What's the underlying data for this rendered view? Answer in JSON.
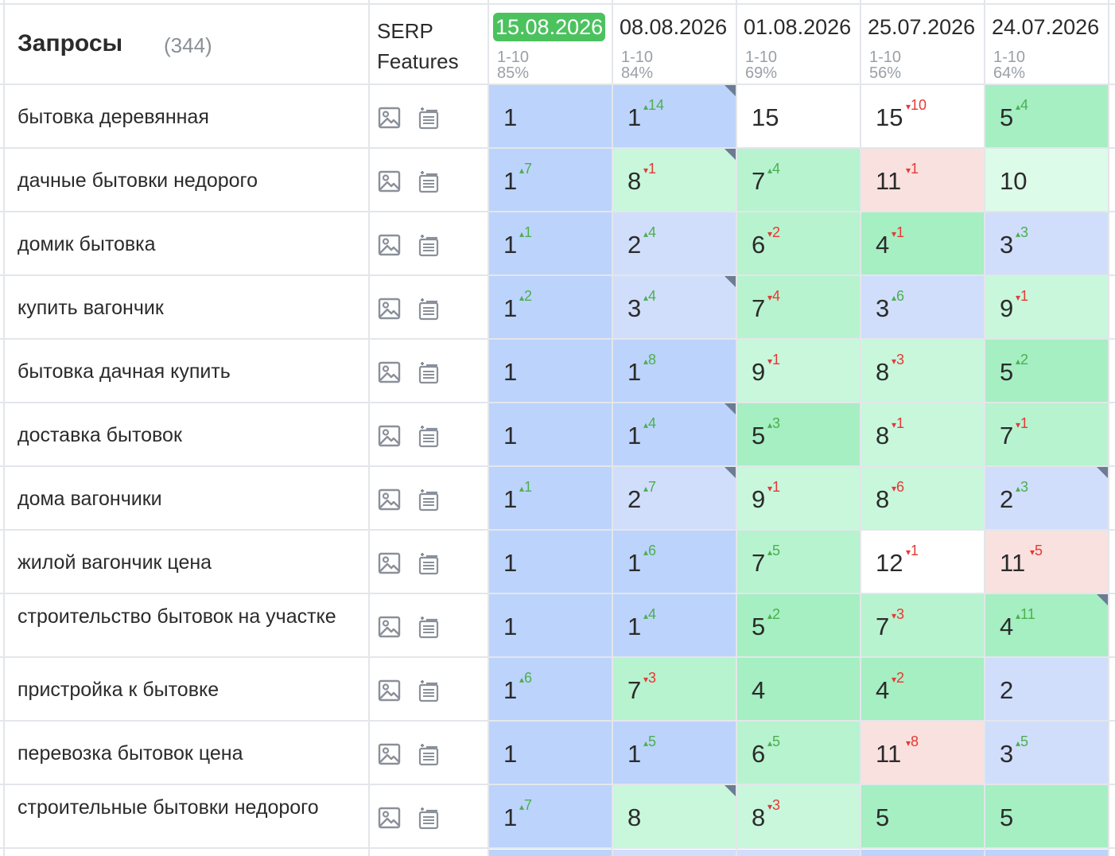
{
  "header": {
    "queries_title": "Запросы",
    "queries_count": "(344)",
    "serp_line1": "SERP",
    "serp_line2": "Features"
  },
  "dates": [
    {
      "label": "15.08.2026",
      "range": "1-10",
      "pct": "85%",
      "active": true
    },
    {
      "label": "08.08.2026",
      "range": "1-10",
      "pct": "84%",
      "active": false
    },
    {
      "label": "01.08.2026",
      "range": "1-10",
      "pct": "69%",
      "active": false
    },
    {
      "label": "25.07.2026",
      "range": "1-10",
      "pct": "56%",
      "active": false
    },
    {
      "label": "24.07.2026",
      "range": "1-10",
      "pct": "64%",
      "active": false
    }
  ],
  "icons": {
    "serp_image": "image-icon",
    "serp_list": "list-add-icon"
  },
  "colors": {
    "pos1": "#bcd3fb",
    "pos2_3": "#d0defb",
    "pos4_5": "#a5efc2",
    "pos6_7": "#b7f3cf",
    "pos8_9": "#c8f7dc",
    "pos10": "#dcfbe9",
    "pos11_plus": "#f9e1df",
    "pos15": "#ffffff",
    "active_date": "#4cc25f",
    "delta_up": "#4caf50",
    "delta_down": "#e53935"
  },
  "rows": [
    {
      "query": "бытовка деревянная",
      "cells": [
        {
          "pos": "1",
          "delta": "",
          "dir": "",
          "mark": false
        },
        {
          "pos": "1",
          "delta": "14",
          "dir": "up",
          "mark": true
        },
        {
          "pos": "15",
          "delta": "",
          "dir": "",
          "mark": false,
          "bg": "white"
        },
        {
          "pos": "15",
          "delta": "10",
          "dir": "down",
          "mark": false
        },
        {
          "pos": "5",
          "delta": "4",
          "dir": "up",
          "mark": false
        }
      ]
    },
    {
      "query": "дачные бытовки недорого",
      "cells": [
        {
          "pos": "1",
          "delta": "7",
          "dir": "up",
          "mark": false
        },
        {
          "pos": "8",
          "delta": "1",
          "dir": "down",
          "mark": true
        },
        {
          "pos": "7",
          "delta": "4",
          "dir": "up",
          "mark": false
        },
        {
          "pos": "11",
          "delta": "1",
          "dir": "down",
          "mark": false
        },
        {
          "pos": "10",
          "delta": "",
          "dir": "",
          "mark": false
        }
      ]
    },
    {
      "query": "домик бытовка",
      "cells": [
        {
          "pos": "1",
          "delta": "1",
          "dir": "up",
          "mark": false
        },
        {
          "pos": "2",
          "delta": "4",
          "dir": "up",
          "mark": false
        },
        {
          "pos": "6",
          "delta": "2",
          "dir": "down",
          "mark": false
        },
        {
          "pos": "4",
          "delta": "1",
          "dir": "down",
          "mark": false
        },
        {
          "pos": "3",
          "delta": "3",
          "dir": "up",
          "mark": false
        }
      ]
    },
    {
      "query": "купить вагончик",
      "cells": [
        {
          "pos": "1",
          "delta": "2",
          "dir": "up",
          "mark": false
        },
        {
          "pos": "3",
          "delta": "4",
          "dir": "up",
          "mark": true
        },
        {
          "pos": "7",
          "delta": "4",
          "dir": "down",
          "mark": false
        },
        {
          "pos": "3",
          "delta": "6",
          "dir": "up",
          "mark": false
        },
        {
          "pos": "9",
          "delta": "1",
          "dir": "down",
          "mark": false
        }
      ]
    },
    {
      "query": "бытовка дачная купить",
      "cells": [
        {
          "pos": "1",
          "delta": "",
          "dir": "",
          "mark": false
        },
        {
          "pos": "1",
          "delta": "8",
          "dir": "up",
          "mark": false
        },
        {
          "pos": "9",
          "delta": "1",
          "dir": "down",
          "mark": false
        },
        {
          "pos": "8",
          "delta": "3",
          "dir": "down",
          "mark": false
        },
        {
          "pos": "5",
          "delta": "2",
          "dir": "up",
          "mark": false
        }
      ]
    },
    {
      "query": "доставка бытовок",
      "cells": [
        {
          "pos": "1",
          "delta": "",
          "dir": "",
          "mark": false
        },
        {
          "pos": "1",
          "delta": "4",
          "dir": "up",
          "mark": true
        },
        {
          "pos": "5",
          "delta": "3",
          "dir": "up",
          "mark": false
        },
        {
          "pos": "8",
          "delta": "1",
          "dir": "down",
          "mark": false
        },
        {
          "pos": "7",
          "delta": "1",
          "dir": "down",
          "mark": false
        }
      ]
    },
    {
      "query": "дома вагончики",
      "cells": [
        {
          "pos": "1",
          "delta": "1",
          "dir": "up",
          "mark": false
        },
        {
          "pos": "2",
          "delta": "7",
          "dir": "up",
          "mark": true
        },
        {
          "pos": "9",
          "delta": "1",
          "dir": "down",
          "mark": false
        },
        {
          "pos": "8",
          "delta": "6",
          "dir": "down",
          "mark": false
        },
        {
          "pos": "2",
          "delta": "3",
          "dir": "up",
          "mark": true
        }
      ]
    },
    {
      "query": "жилой вагончик цена",
      "cells": [
        {
          "pos": "1",
          "delta": "",
          "dir": "",
          "mark": false
        },
        {
          "pos": "1",
          "delta": "6",
          "dir": "up",
          "mark": false
        },
        {
          "pos": "7",
          "delta": "5",
          "dir": "up",
          "mark": false
        },
        {
          "pos": "12",
          "delta": "1",
          "dir": "down",
          "mark": false,
          "bg": "white"
        },
        {
          "pos": "11",
          "delta": "5",
          "dir": "down",
          "mark": false
        }
      ]
    },
    {
      "query": "строительство бытовок на участке",
      "cells": [
        {
          "pos": "1",
          "delta": "",
          "dir": "",
          "mark": false
        },
        {
          "pos": "1",
          "delta": "4",
          "dir": "up",
          "mark": false
        },
        {
          "pos": "5",
          "delta": "2",
          "dir": "up",
          "mark": false
        },
        {
          "pos": "7",
          "delta": "3",
          "dir": "down",
          "mark": false
        },
        {
          "pos": "4",
          "delta": "11",
          "dir": "up",
          "mark": true
        }
      ]
    },
    {
      "query": "пристройка к бытовке",
      "cells": [
        {
          "pos": "1",
          "delta": "6",
          "dir": "up",
          "mark": false
        },
        {
          "pos": "7",
          "delta": "3",
          "dir": "down",
          "mark": false
        },
        {
          "pos": "4",
          "delta": "",
          "dir": "",
          "mark": false
        },
        {
          "pos": "4",
          "delta": "2",
          "dir": "down",
          "mark": false
        },
        {
          "pos": "2",
          "delta": "",
          "dir": "",
          "mark": false
        }
      ]
    },
    {
      "query": "перевозка бытовок цена",
      "cells": [
        {
          "pos": "1",
          "delta": "",
          "dir": "",
          "mark": false
        },
        {
          "pos": "1",
          "delta": "5",
          "dir": "up",
          "mark": false
        },
        {
          "pos": "6",
          "delta": "5",
          "dir": "up",
          "mark": false
        },
        {
          "pos": "11",
          "delta": "8",
          "dir": "down",
          "mark": false
        },
        {
          "pos": "3",
          "delta": "5",
          "dir": "up",
          "mark": false
        }
      ]
    },
    {
      "query": "строительные бытовки недорого",
      "cells": [
        {
          "pos": "1",
          "delta": "7",
          "dir": "up",
          "mark": false
        },
        {
          "pos": "8",
          "delta": "",
          "dir": "",
          "mark": true
        },
        {
          "pos": "8",
          "delta": "3",
          "dir": "down",
          "mark": false
        },
        {
          "pos": "5",
          "delta": "",
          "dir": "",
          "mark": false
        },
        {
          "pos": "5",
          "delta": "",
          "dir": "",
          "mark": false
        }
      ]
    }
  ]
}
